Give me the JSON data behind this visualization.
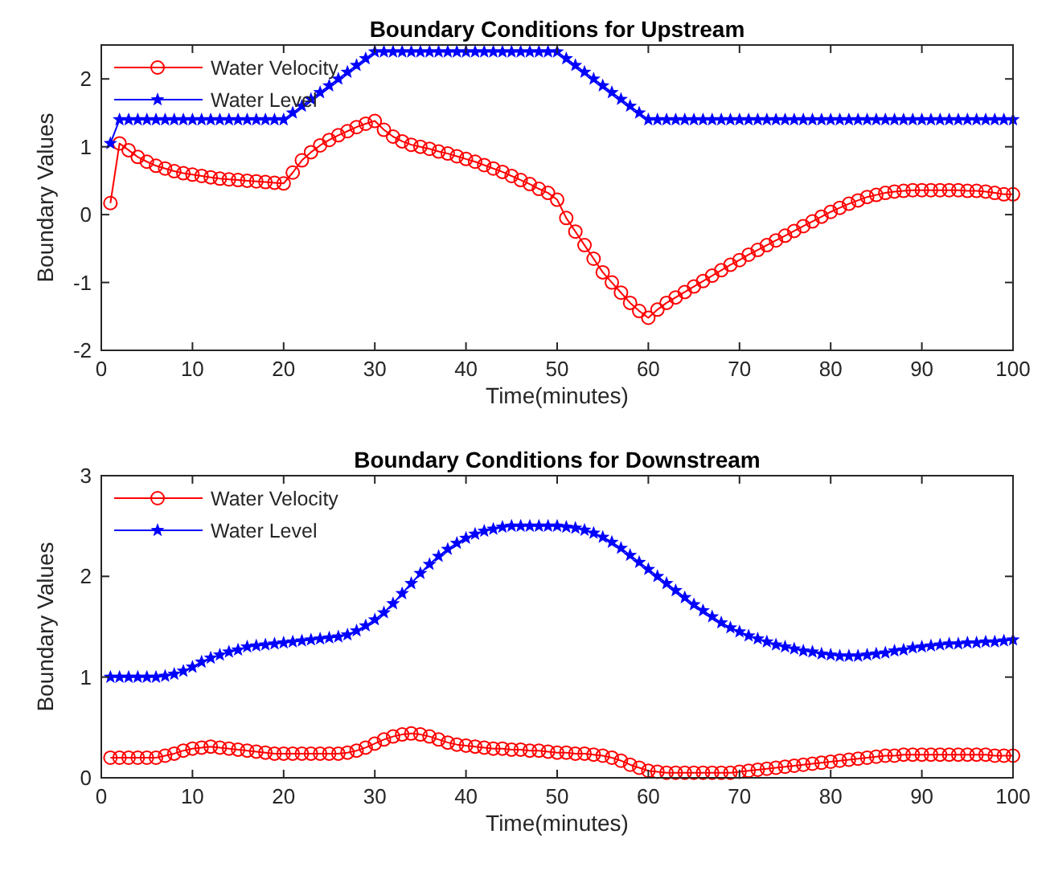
{
  "chart_data": [
    {
      "type": "line",
      "title": "Boundary Conditions for Upstream",
      "xlabel": "Time(minutes)",
      "ylabel": "Boundary Values",
      "xlim": [
        0,
        100
      ],
      "xticks": [
        0,
        10,
        20,
        30,
        40,
        50,
        60,
        70,
        80,
        90,
        100
      ],
      "ylim": [
        -2,
        2.5
      ],
      "yticks": [
        -2,
        -1,
        0,
        1,
        2
      ],
      "grid": false,
      "legend": "top left",
      "x": [
        1,
        2,
        3,
        4,
        5,
        6,
        7,
        8,
        9,
        10,
        11,
        12,
        13,
        14,
        15,
        16,
        17,
        18,
        19,
        20,
        21,
        22,
        23,
        24,
        25,
        26,
        27,
        28,
        29,
        30,
        31,
        32,
        33,
        34,
        35,
        36,
        37,
        38,
        39,
        40,
        41,
        42,
        43,
        44,
        45,
        46,
        47,
        48,
        49,
        50,
        51,
        52,
        53,
        54,
        55,
        56,
        57,
        58,
        59,
        60,
        61,
        62,
        63,
        64,
        65,
        66,
        67,
        68,
        69,
        70,
        71,
        72,
        73,
        74,
        75,
        76,
        77,
        78,
        79,
        80,
        81,
        82,
        83,
        84,
        85,
        86,
        87,
        88,
        89,
        90,
        91,
        92,
        93,
        94,
        95,
        96,
        97,
        98,
        99,
        100
      ],
      "series": [
        {
          "name": "Water Velocity",
          "color": "#ff0000",
          "marker": "circle",
          "values": [
            0.17,
            1.05,
            0.95,
            0.85,
            0.78,
            0.72,
            0.68,
            0.64,
            0.61,
            0.59,
            0.57,
            0.55,
            0.53,
            0.52,
            0.51,
            0.5,
            0.49,
            0.48,
            0.47,
            0.46,
            0.62,
            0.8,
            0.92,
            1.02,
            1.1,
            1.17,
            1.23,
            1.29,
            1.34,
            1.38,
            1.25,
            1.15,
            1.08,
            1.03,
            1.0,
            0.97,
            0.93,
            0.9,
            0.86,
            0.82,
            0.78,
            0.73,
            0.68,
            0.63,
            0.57,
            0.51,
            0.45,
            0.38,
            0.32,
            0.22,
            -0.05,
            -0.25,
            -0.45,
            -0.65,
            -0.85,
            -1.0,
            -1.15,
            -1.3,
            -1.42,
            -1.52,
            -1.4,
            -1.3,
            -1.22,
            -1.14,
            -1.06,
            -0.98,
            -0.9,
            -0.82,
            -0.74,
            -0.67,
            -0.59,
            -0.52,
            -0.45,
            -0.38,
            -0.31,
            -0.24,
            -0.17,
            -0.1,
            -0.03,
            0.04,
            0.1,
            0.16,
            0.21,
            0.26,
            0.29,
            0.32,
            0.34,
            0.35,
            0.36,
            0.36,
            0.36,
            0.36,
            0.36,
            0.36,
            0.35,
            0.35,
            0.34,
            0.32,
            0.3,
            0.3
          ]
        },
        {
          "name": "Water Level",
          "color": "#0000ff",
          "marker": "star",
          "values": [
            1.05,
            1.4,
            1.4,
            1.4,
            1.4,
            1.4,
            1.4,
            1.4,
            1.4,
            1.4,
            1.4,
            1.4,
            1.4,
            1.4,
            1.4,
            1.4,
            1.4,
            1.4,
            1.4,
            1.4,
            1.5,
            1.6,
            1.7,
            1.8,
            1.9,
            2.0,
            2.1,
            2.2,
            2.3,
            2.4,
            2.4,
            2.4,
            2.4,
            2.4,
            2.4,
            2.4,
            2.4,
            2.4,
            2.4,
            2.4,
            2.4,
            2.4,
            2.4,
            2.4,
            2.4,
            2.4,
            2.4,
            2.4,
            2.4,
            2.4,
            2.3,
            2.2,
            2.1,
            2.0,
            1.9,
            1.8,
            1.7,
            1.6,
            1.5,
            1.4,
            1.4,
            1.4,
            1.4,
            1.4,
            1.4,
            1.4,
            1.4,
            1.4,
            1.4,
            1.4,
            1.4,
            1.4,
            1.4,
            1.4,
            1.4,
            1.4,
            1.4,
            1.4,
            1.4,
            1.4,
            1.4,
            1.4,
            1.4,
            1.4,
            1.4,
            1.4,
            1.4,
            1.4,
            1.4,
            1.4,
            1.4,
            1.4,
            1.4,
            1.4,
            1.4,
            1.4,
            1.4,
            1.4,
            1.4,
            1.4
          ]
        }
      ]
    },
    {
      "type": "line",
      "title": "Boundary Conditions for Downstream",
      "xlabel": "Time(minutes)",
      "ylabel": "Boundary Values",
      "xlim": [
        0,
        100
      ],
      "xticks": [
        0,
        10,
        20,
        30,
        40,
        50,
        60,
        70,
        80,
        90,
        100
      ],
      "ylim": [
        0,
        3
      ],
      "yticks": [
        0,
        1,
        2,
        3
      ],
      "grid": false,
      "legend": "top left",
      "x": [
        1,
        2,
        3,
        4,
        5,
        6,
        7,
        8,
        9,
        10,
        11,
        12,
        13,
        14,
        15,
        16,
        17,
        18,
        19,
        20,
        21,
        22,
        23,
        24,
        25,
        26,
        27,
        28,
        29,
        30,
        31,
        32,
        33,
        34,
        35,
        36,
        37,
        38,
        39,
        40,
        41,
        42,
        43,
        44,
        45,
        46,
        47,
        48,
        49,
        50,
        51,
        52,
        53,
        54,
        55,
        56,
        57,
        58,
        59,
        60,
        61,
        62,
        63,
        64,
        65,
        66,
        67,
        68,
        69,
        70,
        71,
        72,
        73,
        74,
        75,
        76,
        77,
        78,
        79,
        80,
        81,
        82,
        83,
        84,
        85,
        86,
        87,
        88,
        89,
        90,
        91,
        92,
        93,
        94,
        95,
        96,
        97,
        98,
        99,
        100
      ],
      "series": [
        {
          "name": "Water Velocity",
          "color": "#ff0000",
          "marker": "circle",
          "values": [
            0.2,
            0.2,
            0.2,
            0.2,
            0.2,
            0.2,
            0.22,
            0.24,
            0.27,
            0.29,
            0.3,
            0.31,
            0.3,
            0.29,
            0.28,
            0.27,
            0.26,
            0.25,
            0.24,
            0.24,
            0.24,
            0.24,
            0.24,
            0.24,
            0.24,
            0.24,
            0.25,
            0.27,
            0.3,
            0.34,
            0.38,
            0.41,
            0.43,
            0.44,
            0.43,
            0.41,
            0.38,
            0.35,
            0.33,
            0.32,
            0.31,
            0.3,
            0.29,
            0.29,
            0.28,
            0.28,
            0.27,
            0.27,
            0.26,
            0.25,
            0.25,
            0.24,
            0.24,
            0.23,
            0.22,
            0.2,
            0.17,
            0.13,
            0.1,
            0.07,
            0.06,
            0.05,
            0.05,
            0.05,
            0.05,
            0.05,
            0.05,
            0.05,
            0.05,
            0.06,
            0.07,
            0.08,
            0.09,
            0.1,
            0.11,
            0.12,
            0.13,
            0.14,
            0.15,
            0.16,
            0.17,
            0.18,
            0.19,
            0.2,
            0.21,
            0.22,
            0.22,
            0.23,
            0.23,
            0.23,
            0.23,
            0.23,
            0.23,
            0.23,
            0.23,
            0.23,
            0.23,
            0.22,
            0.22,
            0.22
          ]
        },
        {
          "name": "Water Level",
          "color": "#0000ff",
          "marker": "star",
          "values": [
            1.0,
            1.0,
            1.0,
            1.0,
            1.0,
            1.0,
            1.01,
            1.03,
            1.06,
            1.1,
            1.15,
            1.19,
            1.22,
            1.25,
            1.27,
            1.3,
            1.31,
            1.32,
            1.33,
            1.34,
            1.35,
            1.36,
            1.37,
            1.38,
            1.39,
            1.4,
            1.42,
            1.46,
            1.51,
            1.57,
            1.64,
            1.73,
            1.83,
            1.93,
            2.03,
            2.12,
            2.2,
            2.27,
            2.33,
            2.38,
            2.42,
            2.45,
            2.47,
            2.49,
            2.5,
            2.5,
            2.5,
            2.5,
            2.5,
            2.5,
            2.49,
            2.48,
            2.46,
            2.43,
            2.39,
            2.34,
            2.28,
            2.21,
            2.14,
            2.07,
            2.0,
            1.93,
            1.86,
            1.79,
            1.72,
            1.66,
            1.6,
            1.54,
            1.49,
            1.45,
            1.41,
            1.38,
            1.35,
            1.32,
            1.3,
            1.28,
            1.26,
            1.25,
            1.23,
            1.22,
            1.21,
            1.21,
            1.21,
            1.22,
            1.23,
            1.24,
            1.26,
            1.27,
            1.29,
            1.3,
            1.31,
            1.32,
            1.33,
            1.33,
            1.34,
            1.34,
            1.35,
            1.35,
            1.36,
            1.37
          ]
        }
      ]
    }
  ]
}
